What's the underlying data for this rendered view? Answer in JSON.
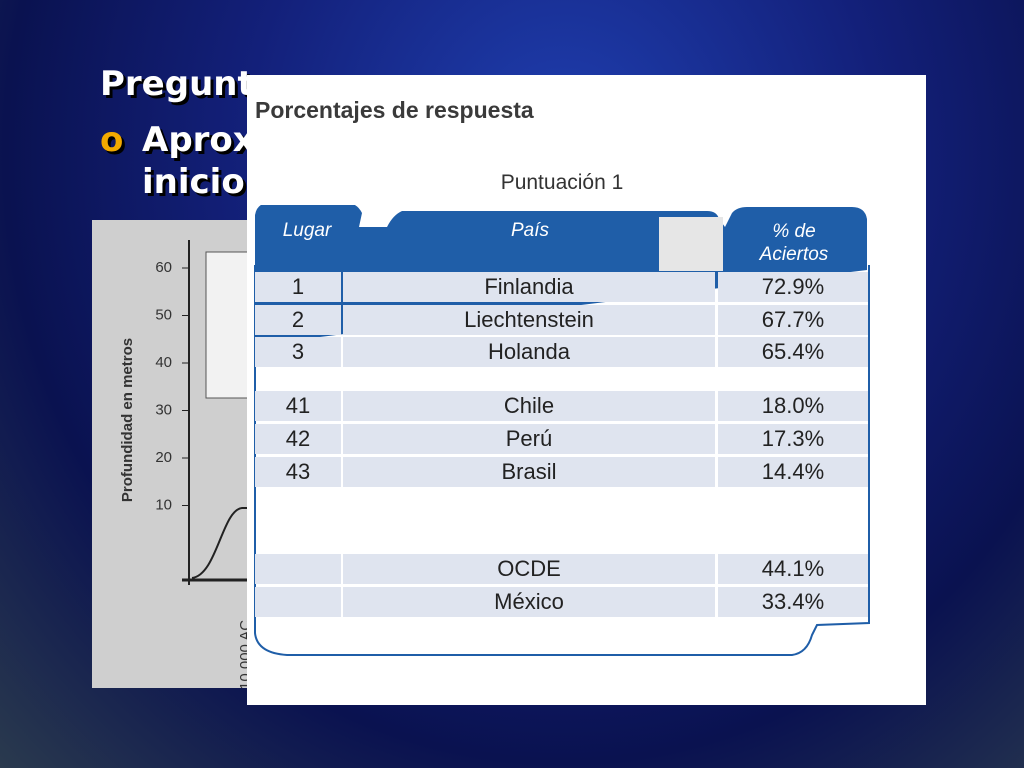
{
  "slide": {
    "title_fragments": [
      "Pregunt",
      "Aprox",
      "inicio"
    ],
    "bullet": "o"
  },
  "background_chart": {
    "y_axis_label": "Profundidad en metros",
    "yticks": [
      60,
      50,
      40,
      30,
      20,
      10
    ],
    "x_label": "10.000 AC"
  },
  "table": {
    "title": "Porcentajes de respuesta",
    "subtitle": "Puntuación 1",
    "headers": [
      "Lugar",
      "País",
      "% de",
      "Aciertos"
    ],
    "rows": [
      [
        1,
        "Finlandia",
        "72.9%"
      ],
      [
        2,
        "Liechtenstein",
        "67.7%"
      ],
      [
        3,
        "Holanda",
        "65.4%"
      ],
      [
        41,
        "Chile",
        "18.0%"
      ],
      [
        42,
        "Perú",
        "17.3%"
      ],
      [
        43,
        "Brasil",
        "14.4%"
      ]
    ],
    "summary_rows": [
      [
        "OCDE",
        "44.1%"
      ],
      [
        "México",
        "33.4%"
      ]
    ]
  }
}
